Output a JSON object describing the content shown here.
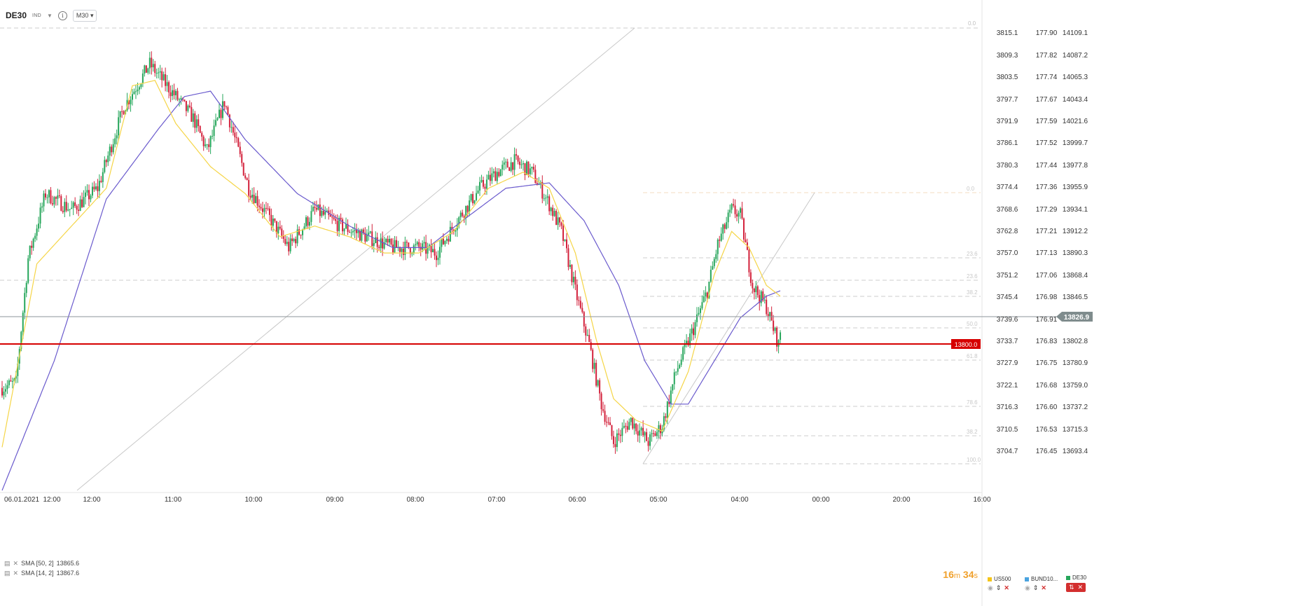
{
  "header": {
    "symbol": "DE30",
    "instrument_type": "IND",
    "timeframe": "M30"
  },
  "indicators": [
    {
      "label": "SMA [50, 2]",
      "value": "13865.6"
    },
    {
      "label": "SMA [14, 2]",
      "value": "13867.6"
    }
  ],
  "timer": {
    "minutes": "16",
    "m": "m",
    "seconds": "34",
    "s": "s"
  },
  "axes": {
    "scale1": [
      "3815.1",
      "3809.3",
      "3803.5",
      "3797.7",
      "3791.9",
      "3786.1",
      "3780.3",
      "3774.4",
      "3768.6",
      "3762.8",
      "3757.0",
      "3751.2",
      "3745.4",
      "3739.6",
      "3733.7",
      "3727.9",
      "3722.1",
      "3716.3",
      "3710.5",
      "3704.7"
    ],
    "scale2": [
      "177.90",
      "177.82",
      "177.74",
      "177.67",
      "177.59",
      "177.52",
      "177.44",
      "177.36",
      "177.29",
      "177.21",
      "177.13",
      "177.06",
      "176.98",
      "176.91",
      "176.83",
      "176.75",
      "176.68",
      "176.60",
      "176.53",
      "176.45"
    ],
    "scale3": [
      "14109.1",
      "14087.2",
      "14065.3",
      "14043.4",
      "14021.6",
      "13999.7",
      "13977.8",
      "13955.9",
      "13934.1",
      "13912.2",
      "13890.3",
      "13868.4",
      "13846.5",
      "",
      "13802.8",
      "13780.9",
      "13759.0",
      "13737.2",
      "13715.3",
      "13693.4"
    ],
    "time_labels": [
      "06.01.2021",
      "12:00",
      "12:00",
      "11:00",
      "10:00",
      "09:00",
      "08:00",
      "07:00",
      "06:00",
      "05:00",
      "04:00",
      "00:00",
      "20:00",
      "16:00"
    ]
  },
  "current_price": "13826.9",
  "alert_price": "13800.0",
  "fib_labels_top": [
    "0.0"
  ],
  "fib_labels_lower": [
    "0.0",
    "23.6",
    "23.6",
    "38.2",
    "50.0",
    "61.8",
    "78.6",
    "38.2",
    "100.0"
  ],
  "compare": [
    {
      "name": "US500",
      "color": "#f5c518"
    },
    {
      "name": "BUND10...",
      "color": "#4aa3df"
    },
    {
      "name": "DE30",
      "color": "#26a65b"
    }
  ],
  "colors": {
    "up": "#26a65b",
    "down": "#d3213b",
    "sma14": "#f5d547",
    "sma50": "#6a5acd",
    "alert": "#d60000",
    "current": "#7f8c8d"
  },
  "chart_data": {
    "type": "candlestick",
    "instrument": "DE30",
    "timeframe": "M30",
    "y_range": [
      13680,
      14115
    ],
    "ticks": [
      14109.1,
      14087.2,
      14065.3,
      14043.4,
      14021.6,
      13999.7,
      13977.8,
      13955.9,
      13934.1,
      13912.2,
      13890.3,
      13868.4,
      13846.5,
      13802.8,
      13780.9,
      13759.0,
      13737.2,
      13715.3,
      13693.4
    ],
    "anchors": [
      [
        0,
        13775
      ],
      [
        8,
        13780
      ],
      [
        15,
        13895
      ],
      [
        25,
        13955
      ],
      [
        40,
        13940
      ],
      [
        55,
        13960
      ],
      [
        70,
        14035
      ],
      [
        85,
        14075
      ],
      [
        95,
        14055
      ],
      [
        110,
        14025
      ],
      [
        118,
        13995
      ],
      [
        128,
        14040
      ],
      [
        142,
        13960
      ],
      [
        155,
        13930
      ],
      [
        165,
        13905
      ],
      [
        180,
        13940
      ],
      [
        195,
        13925
      ],
      [
        210,
        13915
      ],
      [
        225,
        13905
      ],
      [
        240,
        13905
      ],
      [
        250,
        13900
      ],
      [
        262,
        13930
      ],
      [
        275,
        13960
      ],
      [
        285,
        13975
      ],
      [
        295,
        13985
      ],
      [
        305,
        13975
      ],
      [
        315,
        13945
      ],
      [
        322,
        13920
      ],
      [
        330,
        13865
      ],
      [
        338,
        13815
      ],
      [
        345,
        13760
      ],
      [
        352,
        13725
      ],
      [
        362,
        13745
      ],
      [
        372,
        13725
      ],
      [
        380,
        13740
      ],
      [
        388,
        13790
      ],
      [
        398,
        13830
      ],
      [
        406,
        13865
      ],
      [
        412,
        13908
      ],
      [
        420,
        13940
      ],
      [
        425,
        13935
      ],
      [
        432,
        13870
      ],
      [
        440,
        13850
      ],
      [
        447,
        13815
      ],
      [
        448,
        13827
      ]
    ],
    "sma14_anchors": [
      [
        0,
        13720
      ],
      [
        20,
        13890
      ],
      [
        40,
        13925
      ],
      [
        60,
        13960
      ],
      [
        75,
        14055
      ],
      [
        88,
        14060
      ],
      [
        100,
        14020
      ],
      [
        120,
        13980
      ],
      [
        140,
        13955
      ],
      [
        160,
        13915
      ],
      [
        180,
        13925
      ],
      [
        200,
        13915
      ],
      [
        220,
        13900
      ],
      [
        240,
        13900
      ],
      [
        260,
        13920
      ],
      [
        280,
        13960
      ],
      [
        300,
        13975
      ],
      [
        315,
        13960
      ],
      [
        330,
        13900
      ],
      [
        342,
        13820
      ],
      [
        352,
        13765
      ],
      [
        365,
        13745
      ],
      [
        380,
        13735
      ],
      [
        395,
        13790
      ],
      [
        410,
        13880
      ],
      [
        420,
        13920
      ],
      [
        430,
        13905
      ],
      [
        440,
        13870
      ],
      [
        448,
        13860
      ]
    ],
    "sma50_anchors": [
      [
        0,
        13680
      ],
      [
        30,
        13800
      ],
      [
        60,
        13950
      ],
      [
        90,
        14015
      ],
      [
        105,
        14045
      ],
      [
        120,
        14050
      ],
      [
        140,
        14005
      ],
      [
        170,
        13955
      ],
      [
        200,
        13925
      ],
      [
        225,
        13905
      ],
      [
        245,
        13905
      ],
      [
        265,
        13930
      ],
      [
        290,
        13960
      ],
      [
        315,
        13965
      ],
      [
        335,
        13930
      ],
      [
        355,
        13870
      ],
      [
        370,
        13800
      ],
      [
        385,
        13760
      ],
      [
        395,
        13760
      ],
      [
        410,
        13800
      ],
      [
        425,
        13840
      ],
      [
        440,
        13860
      ],
      [
        448,
        13865
      ]
    ],
    "current_price": 13826.9,
    "alert_level": 13800.0
  }
}
